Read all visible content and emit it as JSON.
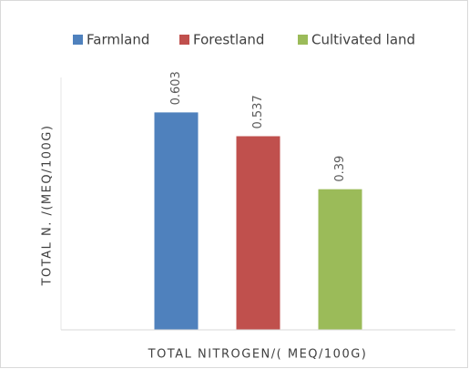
{
  "chart_data": {
    "type": "bar",
    "x_label": "TOTAL NITROGEN/( MEQ/100G)",
    "y_label": "TOTAL N. /(MEQ/100G)",
    "categories": [
      null
    ],
    "series": [
      {
        "name": "Farmland",
        "color": "#4f81bd",
        "values": [
          0.603
        ]
      },
      {
        "name": "Forestland",
        "color": "#c0504d",
        "values": [
          0.537
        ]
      },
      {
        "name": "Cultivated land",
        "color": "#9bbb59",
        "values": [
          0.39
        ]
      }
    ],
    "ylim": [
      0,
      0.7
    ],
    "legend": "top"
  }
}
